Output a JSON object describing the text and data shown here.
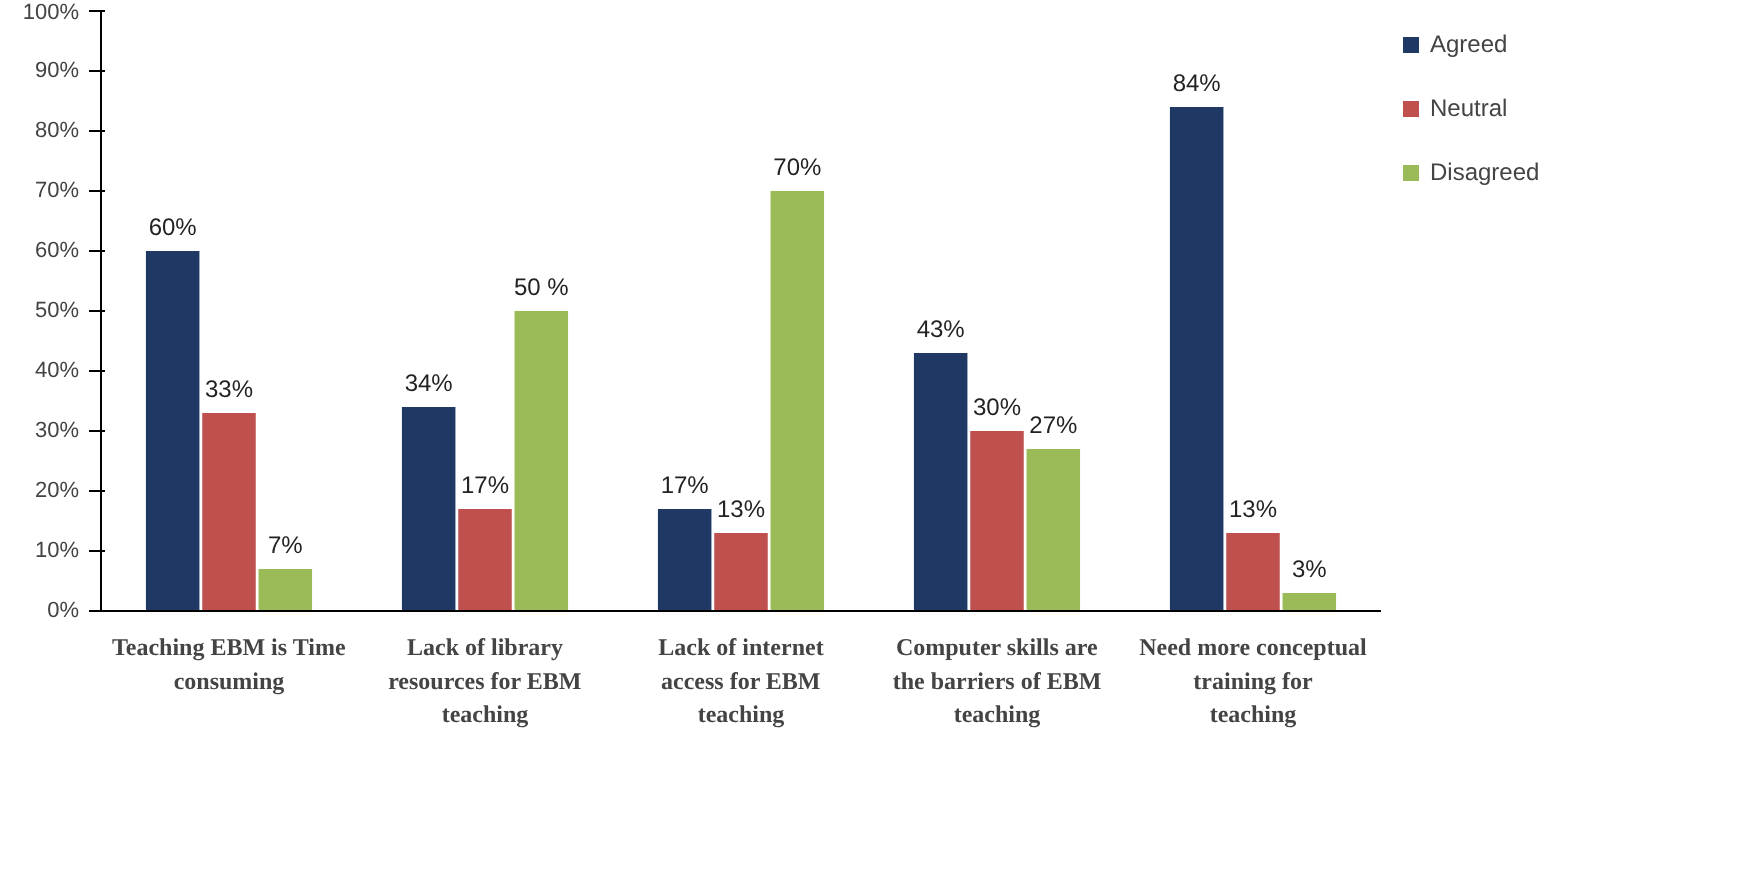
{
  "chart_data": {
    "type": "bar",
    "categories": [
      "Teaching EBM is Time consuming",
      "Lack of library resources for EBM teaching",
      "Lack of internet access for EBM teaching",
      "Computer skills are the barriers of EBM teaching",
      "Need more conceptual training for teaching"
    ],
    "series": [
      {
        "name": "Agreed",
        "color": "#1f3864",
        "values": [
          60,
          34,
          17,
          43,
          84
        ],
        "value_labels": [
          "60%",
          "34%",
          "17%",
          "43%",
          "84%"
        ]
      },
      {
        "name": "Neutral",
        "color": "#c0504d",
        "values": [
          33,
          17,
          13,
          30,
          13
        ],
        "value_labels": [
          "33%",
          "17%",
          "13%",
          "30%",
          "13%"
        ]
      },
      {
        "name": "Disagreed",
        "color": "#9bbb59",
        "values": [
          7,
          50,
          70,
          27,
          3
        ],
        "value_labels": [
          "7%",
          "50 %",
          "70%",
          "27%",
          "3%"
        ]
      }
    ],
    "ylim": [
      0,
      100
    ],
    "yticks": [
      {
        "value": 0,
        "label": "0%"
      },
      {
        "value": 10,
        "label": "10%"
      },
      {
        "value": 20,
        "label": "20%"
      },
      {
        "value": 30,
        "label": "30%"
      },
      {
        "value": 40,
        "label": "40%"
      },
      {
        "value": 50,
        "label": "50%"
      },
      {
        "value": 60,
        "label": "60%"
      },
      {
        "value": 70,
        "label": "70%"
      },
      {
        "value": 80,
        "label": "80%"
      },
      {
        "value": 90,
        "label": "90%"
      },
      {
        "value": 100,
        "label": "100%"
      }
    ],
    "grid": false,
    "legend": "top right"
  }
}
